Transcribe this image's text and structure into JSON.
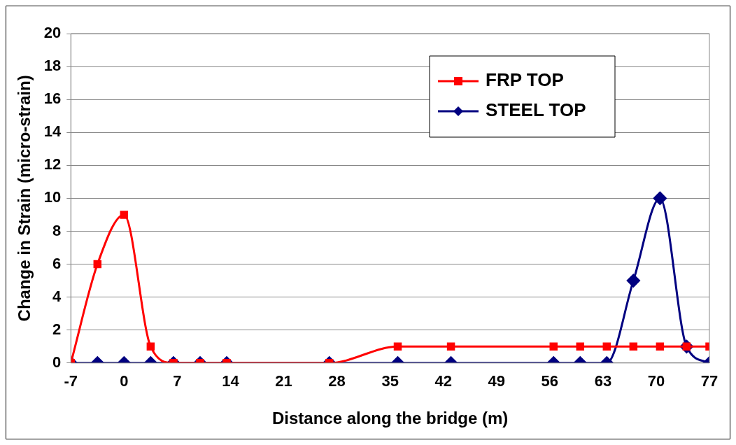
{
  "chart_data": {
    "type": "line",
    "xlabel": "Distance along the bridge (m)",
    "ylabel": "Change in Strain (micro-strain)",
    "xlim": [
      -7,
      77
    ],
    "xticks": [
      -7,
      0,
      7,
      14,
      21,
      28,
      35,
      42,
      49,
      56,
      63,
      70,
      77
    ],
    "ylim": [
      0,
      20
    ],
    "yticks": [
      0,
      2,
      4,
      6,
      8,
      10,
      12,
      14,
      16,
      18,
      20
    ],
    "grid": "y",
    "legend": "top right",
    "series": [
      {
        "name": "FRP TOP",
        "color": "#ff0000",
        "marker": "square",
        "x": [
          -7,
          -3.5,
          0,
          3.5,
          6.5,
          10,
          13.5,
          27,
          36,
          43,
          56.5,
          60,
          63.5,
          67,
          70.5,
          74,
          77
        ],
        "values": [
          0,
          6,
          9,
          1,
          0,
          0,
          0,
          0,
          1,
          1,
          1,
          1,
          1,
          1,
          1,
          1,
          1
        ]
      },
      {
        "name": "STEEL TOP",
        "color": "#000080",
        "marker": "diamond",
        "x": [
          -7,
          -3.5,
          0,
          3.5,
          6.5,
          10,
          13.5,
          27,
          36,
          43,
          56.5,
          60,
          63.5,
          67,
          70.5,
          74,
          77
        ],
        "values": [
          0,
          0,
          0,
          0,
          0,
          0,
          0,
          0,
          0,
          0,
          0,
          0,
          0,
          5,
          10,
          1,
          0
        ]
      }
    ]
  }
}
